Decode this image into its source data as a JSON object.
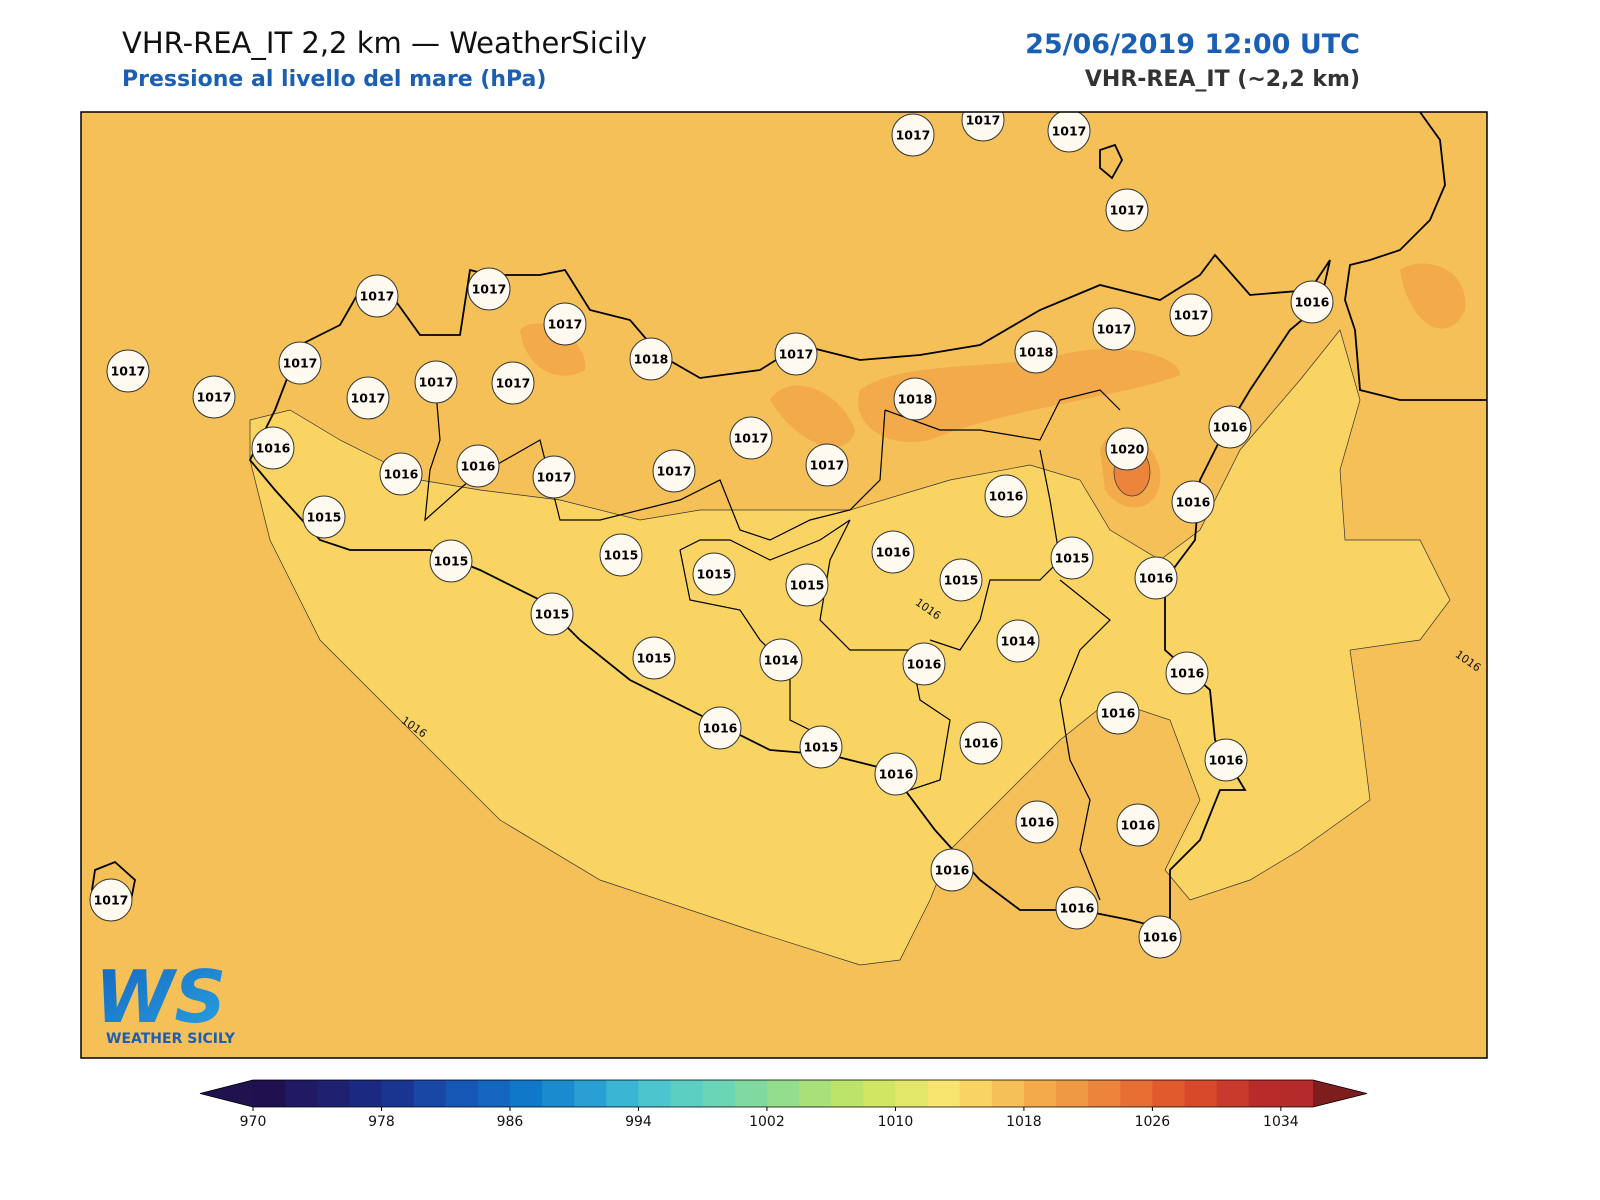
{
  "header": {
    "title": "VHR-REA_IT 2,2 km — WeatherSicily",
    "subtitle": "Pressione al livello del mare (hPa)",
    "date": "25/06/2019 12:00 UTC",
    "model": "VHR-REA_IT (~2,2 km)"
  },
  "stations": [
    1017,
    1017,
    1017,
    1017,
    1017,
    1017,
    1017,
    1018,
    1017,
    1018,
    1017,
    1017,
    1016,
    1017,
    1017,
    1017,
    1017,
    1017,
    1017,
    1018,
    1016,
    1017,
    1020,
    1016,
    1016,
    1016,
    1017,
    1017,
    1017,
    1016,
    1016,
    1015,
    1015,
    1015,
    1015,
    1015,
    1016,
    1015,
    1015,
    1016,
    1015,
    1015,
    1014,
    1016,
    1014,
    1016,
    1016,
    1015,
    1016,
    1016,
    1016,
    1016,
    1016,
    1016,
    1016,
    1016,
    1016,
    1017
  ],
  "contour_labels": [
    1016,
    1016,
    1016
  ],
  "logo": {
    "mark": "WS",
    "text": "WEATHER SICILY"
  },
  "colorbar": {
    "lim": [
      970,
      1036
    ],
    "ticks": [
      970,
      978,
      986,
      994,
      1002,
      1010,
      1018,
      1026,
      1034
    ],
    "colors": [
      "#1f1050",
      "#1f1a63",
      "#1d2170",
      "#1b2a80",
      "#1a3590",
      "#1847a5",
      "#1656b4",
      "#1365bf",
      "#0f78c8",
      "#1a8bcf",
      "#2a9fd2",
      "#3ab5d4",
      "#4cc5cf",
      "#5ccfc3",
      "#6bd6b5",
      "#80d9a0",
      "#94dd8c",
      "#a9e07a",
      "#bde36b",
      "#d1e663",
      "#e3e86a",
      "#f7e56f",
      "#fad462",
      "#f5c057",
      "#f2aa4b",
      "#ef9843",
      "#ec853c",
      "#e86f34",
      "#e05a2e",
      "#d8492b",
      "#c93a2c",
      "#b82b2a",
      "#b52a2a"
    ],
    "under": "#20124d",
    "over": "#7d1d1d"
  }
}
